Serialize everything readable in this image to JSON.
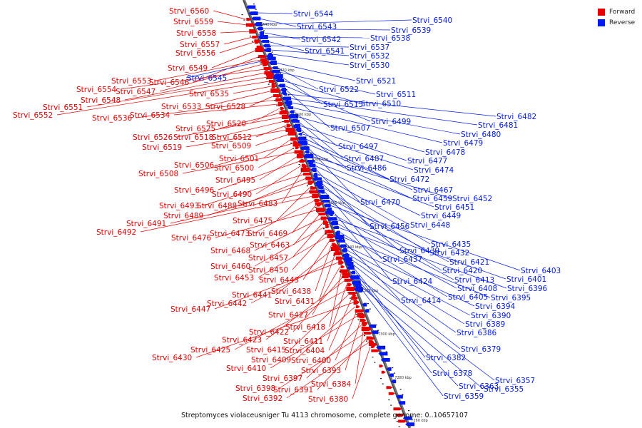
{
  "legend": {
    "forward_label": "Forward",
    "reverse_label": "Reverse",
    "forward_color": "#e60000",
    "reverse_color": "#0019ee"
  },
  "caption": "Streptomyces violaceusniger Tu 4113 chromosome, complete genome: 0..10657107",
  "ticks": [
    "7440 kbp",
    "7420 kbp",
    "7400 kbp",
    "7380 kbp",
    "7360 kbp",
    "7340 kbp",
    "7320 kbp",
    "7300 kbp",
    "7280 kbp",
    "7260 kbp"
  ],
  "forward_genes": [
    "Strvi_6560",
    "Strvi_6559",
    "Strvi_6558",
    "Strvi_6557",
    "Strvi_6556",
    "Strvi_6549",
    "Strvi_6546",
    "Strvi_6553",
    "Strvi_6547",
    "Strvi_6554",
    "Strvi_6548",
    "Strvi_6551",
    "Strvi_6552",
    "Strvi_6535",
    "Strvi_6533",
    "Strvi_6528",
    "Strvi_6536",
    "Strvi_6534",
    "Strvi_6520",
    "Strvi_6525",
    "Strvi_6526",
    "Strvi_6518",
    "Strvi_6512",
    "Strvi_6519",
    "Strvi_6509",
    "Strvi_6501",
    "Strvi_6506",
    "Strvi_6500",
    "Strvi_6508",
    "Strvi_6495",
    "Strvi_6496",
    "Strvi_6490",
    "Strvi_6483",
    "Strvi_6493",
    "Strvi_6488",
    "Strvi_6489",
    "Strvi_6475",
    "Strvi_6491",
    "Strvi_6492",
    "Strvi_6473",
    "Strvi_6469",
    "Strvi_6476",
    "Strvi_6463",
    "Strvi_6468",
    "Strvi_6457",
    "Strvi_6460",
    "Strvi_6450",
    "Strvi_6453",
    "Strvi_6443",
    "Strvi_6438",
    "Strvi_6441",
    "Strvi_6431",
    "Strvi_6442",
    "Strvi_6447",
    "Strvi_6427",
    "Strvi_6418",
    "Strvi_6422",
    "Strvi_6423",
    "Strvi_6411",
    "Strvi_6425",
    "Strvi_6415",
    "Strvi_6404",
    "Strvi_6430",
    "Strvi_6409",
    "Strvi_6400",
    "Strvi_6410",
    "Strvi_6393",
    "Strvi_6397",
    "Strvi_6384",
    "Strvi_6398",
    "Strvi_6391",
    "Strvi_6392",
    "Strvi_6380"
  ],
  "reverse_genes": [
    "Strvi_6544",
    "Strvi_6543",
    "Strvi_6540",
    "Strvi_6539",
    "Strvi_6542",
    "Strvi_6538",
    "Strvi_6541",
    "Strvi_6537",
    "Strvi_6532",
    "Strvi_6530",
    "Strvi_6545",
    "Strvi_6521",
    "Strvi_6522",
    "Strvi_6511",
    "Strvi_6515",
    "Strvi_6510",
    "Strvi_6499",
    "Strvi_6507",
    "Strvi_6482",
    "Strvi_6481",
    "Strvi_6480",
    "Strvi_6479",
    "Strvi_6497",
    "Strvi_6478",
    "Strvi_6487",
    "Strvi_6477",
    "Strvi_6486",
    "Strvi_6474",
    "Strvi_6472",
    "Strvi_6467",
    "Strvi_6470",
    "Strvi_6459",
    "Strvi_6452",
    "Strvi_6451",
    "Strvi_6449",
    "Strvi_6456",
    "Strvi_6448",
    "Strvi_6435",
    "Strvi_6439",
    "Strvi_6432",
    "Strvi_6437",
    "Strvi_6421",
    "Strvi_6420",
    "Strvi_6403",
    "Strvi_6424",
    "Strvi_6413",
    "Strvi_6401",
    "Strvi_6408",
    "Strvi_6396",
    "Strvi_6405",
    "Strvi_6395",
    "Strvi_6414",
    "Strvi_6394",
    "Strvi_6390",
    "Strvi_6389",
    "Strvi_6386",
    "Strvi_6379",
    "Strvi_6382",
    "Strvi_6378",
    "Strvi_6357",
    "Strvi_6363",
    "Strvi_6355",
    "Strvi_6359"
  ]
}
